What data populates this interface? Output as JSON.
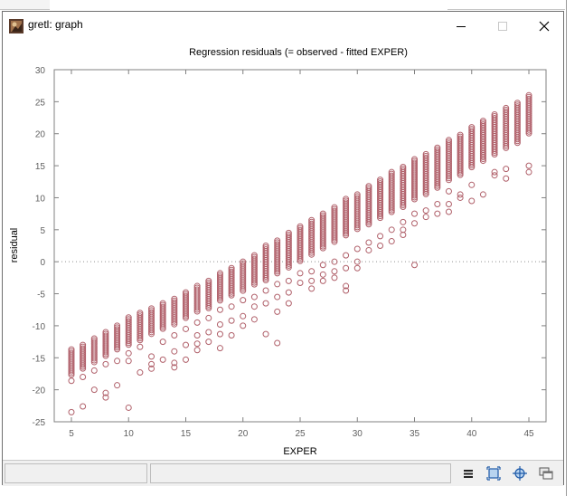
{
  "window": {
    "title": "gretl: graph"
  },
  "chart_data": {
    "type": "scatter",
    "title": "Regression residuals (= observed - fitted EXPER)",
    "xlabel": "EXPER",
    "ylabel": "residual",
    "xlim": [
      3.5,
      46.5
    ],
    "ylim": [
      -25,
      30
    ],
    "x_ticks": [
      5,
      10,
      15,
      20,
      25,
      30,
      35,
      40,
      45
    ],
    "y_ticks": [
      -25,
      -20,
      -15,
      -10,
      -5,
      0,
      5,
      10,
      15,
      20,
      25,
      30
    ],
    "zero_line": true,
    "marker_color": "#b0606a",
    "columns": [
      {
        "x": 5,
        "top": -13.7,
        "bottom": -17.8,
        "outliers": [
          -18.6,
          -23.5
        ]
      },
      {
        "x": 6,
        "top": -13.0,
        "bottom": -16.8,
        "outliers": [
          -18.0,
          -22.6
        ]
      },
      {
        "x": 7,
        "top": -12.0,
        "bottom": -15.8,
        "outliers": [
          -17.0,
          -20.0
        ]
      },
      {
        "x": 8,
        "top": -11.0,
        "bottom": -14.8,
        "outliers": [
          -16.0,
          -20.5,
          -21.2
        ]
      },
      {
        "x": 9,
        "top": -10.0,
        "bottom": -13.8,
        "outliers": [
          -15.5,
          -19.3
        ]
      },
      {
        "x": 10,
        "top": -8.7,
        "bottom": -13.0,
        "outliers": [
          -14.3,
          -15.5,
          -22.8
        ]
      },
      {
        "x": 11,
        "top": -8.0,
        "bottom": -12.5,
        "outliers": [
          -13.3,
          -17.3
        ]
      },
      {
        "x": 12,
        "top": -7.3,
        "bottom": -11.5,
        "outliers": [
          -14.8,
          -16.0,
          -16.7
        ]
      },
      {
        "x": 13,
        "top": -6.5,
        "bottom": -10.5,
        "outliers": [
          -12.5,
          -15.3
        ]
      },
      {
        "x": 14,
        "top": -5.8,
        "bottom": -9.8,
        "outliers": [
          -11.5,
          -14.0,
          -15.8,
          -16.5
        ]
      },
      {
        "x": 15,
        "top": -4.8,
        "bottom": -8.8,
        "outliers": [
          -10.5,
          -13.0,
          -15.3
        ]
      },
      {
        "x": 16,
        "top": -3.8,
        "bottom": -8.0,
        "outliers": [
          -9.5,
          -11.5,
          -12.8,
          -13.8
        ]
      },
      {
        "x": 17,
        "top": -3.0,
        "bottom": -7.3,
        "outliers": [
          -8.8,
          -11.0,
          -12.5
        ]
      },
      {
        "x": 18,
        "top": -1.8,
        "bottom": -6.3,
        "outliers": [
          -7.5,
          -9.8,
          -11.3,
          -13.5
        ]
      },
      {
        "x": 19,
        "top": -1.0,
        "bottom": -5.5,
        "outliers": [
          -7.0,
          -9.2,
          -11.5
        ]
      },
      {
        "x": 20,
        "top": 0.0,
        "bottom": -4.8,
        "outliers": [
          -6.0,
          -8.5,
          -10.0
        ]
      },
      {
        "x": 21,
        "top": 1.0,
        "bottom": -3.8,
        "outliers": [
          -5.5,
          -7.0,
          -9.0
        ]
      },
      {
        "x": 22,
        "top": 2.5,
        "bottom": -3.0,
        "outliers": [
          -4.5,
          -6.5,
          -11.3
        ]
      },
      {
        "x": 23,
        "top": 3.3,
        "bottom": -2.0,
        "outliers": [
          -3.5,
          -5.5,
          -7.8,
          -12.7
        ]
      },
      {
        "x": 24,
        "top": 4.5,
        "bottom": -1.0,
        "outliers": [
          -3.0,
          -4.8,
          -6.5
        ]
      },
      {
        "x": 25,
        "top": 5.5,
        "bottom": 0.0,
        "outliers": [
          -1.8,
          -3.3
        ]
      },
      {
        "x": 26,
        "top": 6.5,
        "bottom": 1.0,
        "outliers": [
          -1.5,
          -3.0,
          -4.2
        ]
      },
      {
        "x": 27,
        "top": 7.5,
        "bottom": 2.0,
        "outliers": [
          -0.5,
          -2.0,
          -3.0
        ]
      },
      {
        "x": 28,
        "top": 8.5,
        "bottom": 3.0,
        "outliers": [
          0.0,
          -1.5,
          -2.5
        ]
      },
      {
        "x": 29,
        "top": 9.8,
        "bottom": 4.0,
        "outliers": [
          1.0,
          -1.0,
          -3.8,
          -4.5
        ]
      },
      {
        "x": 30,
        "top": 10.5,
        "bottom": 5.0,
        "outliers": [
          2.0,
          0.0,
          -1.0
        ]
      },
      {
        "x": 31,
        "top": 11.8,
        "bottom": 5.8,
        "outliers": [
          3.0,
          1.8
        ]
      },
      {
        "x": 32,
        "top": 12.8,
        "bottom": 6.8,
        "outliers": [
          4.0,
          2.5
        ]
      },
      {
        "x": 33,
        "top": 14.0,
        "bottom": 7.5,
        "outliers": [
          5.0,
          3.2
        ]
      },
      {
        "x": 34,
        "top": 14.8,
        "bottom": 8.5,
        "outliers": [
          6.2,
          5.0,
          4.2
        ]
      },
      {
        "x": 35,
        "top": 16.0,
        "bottom": 9.5,
        "outliers": [
          7.5,
          6.0,
          -0.5
        ]
      },
      {
        "x": 36,
        "top": 16.8,
        "bottom": 10.5,
        "outliers": [
          8.0,
          7.0
        ]
      },
      {
        "x": 37,
        "top": 17.8,
        "bottom": 11.5,
        "outliers": [
          9.0,
          7.5
        ]
      },
      {
        "x": 38,
        "top": 19.0,
        "bottom": 12.5,
        "outliers": [
          11.0,
          9.0,
          7.8
        ]
      },
      {
        "x": 39,
        "top": 19.8,
        "bottom": 13.5,
        "outliers": [
          10.5,
          10.0
        ]
      },
      {
        "x": 40,
        "top": 21.0,
        "bottom": 14.5,
        "outliers": [
          12.0,
          9.5
        ]
      },
      {
        "x": 41,
        "top": 22.0,
        "bottom": 15.5,
        "outliers": [
          10.5
        ]
      },
      {
        "x": 42,
        "top": 23.0,
        "bottom": 16.5,
        "outliers": [
          14.0,
          13.5
        ]
      },
      {
        "x": 43,
        "top": 24.0,
        "bottom": 17.5,
        "outliers": [
          14.5,
          13.0
        ]
      },
      {
        "x": 44,
        "top": 24.8,
        "bottom": 18.5,
        "outliers": []
      },
      {
        "x": 45,
        "top": 26.0,
        "bottom": 20.0,
        "outliers": [
          15.0,
          14.0
        ]
      }
    ]
  },
  "statusbar": {
    "cells": [
      "",
      ""
    ],
    "icons": [
      "menu-icon",
      "zoom-icon",
      "crosshair-icon",
      "windows-icon"
    ]
  }
}
